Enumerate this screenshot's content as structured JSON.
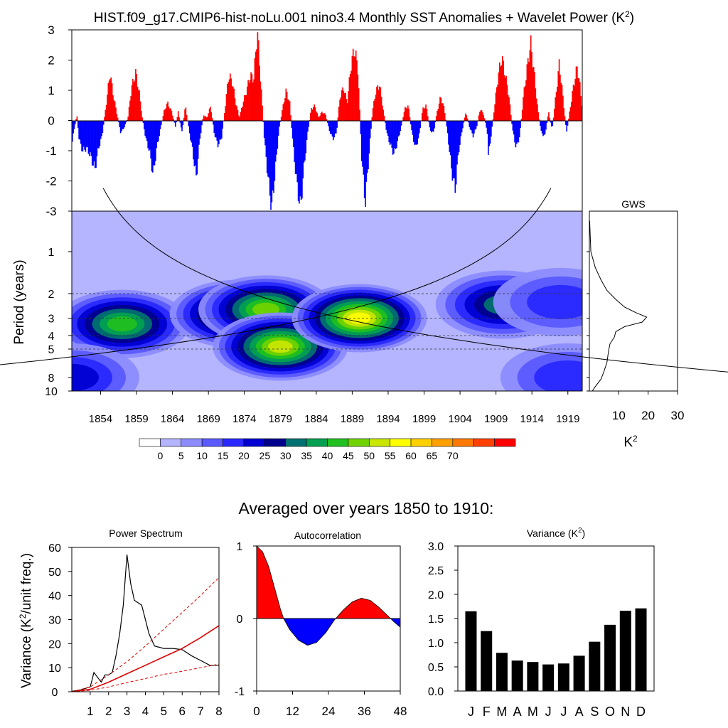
{
  "main_title": "HIST.f09_g17.CMIP6-hist-noLu.001 nino3.4 Monthly SST Anomalies + Wavelet Power (K",
  "main_title_sup": "2",
  "main_title_end": ")",
  "section_title": "Averaged over years 1850 to 1910:",
  "colors": {
    "positive": "#ff0000",
    "negative": "#0000ff",
    "wavelet_levels": [
      "#ffffff",
      "#b4b4ff",
      "#8c8cff",
      "#5a5aff",
      "#2828ff",
      "#0000d2",
      "#00008c",
      "#007070",
      "#00a050",
      "#20c020",
      "#70d200",
      "#c8e600",
      "#ffff00",
      "#ffd000",
      "#ffa000",
      "#ff7800",
      "#ff4000",
      "#ff0000"
    ]
  },
  "chart_data": [
    {
      "type": "bar",
      "name": "sst_anomalies",
      "ylim": [
        -3,
        3
      ],
      "yticks": [
        "3",
        "2",
        "1",
        "0",
        "-1",
        "-2",
        "-3"
      ],
      "x_range_years": [
        1850,
        1921
      ],
      "anomaly_points": [
        [
          1850.0,
          -0.8
        ],
        [
          1850.3,
          -0.3
        ],
        [
          1850.7,
          0.2
        ],
        [
          1851.0,
          -0.6
        ],
        [
          1851.5,
          -1.0
        ],
        [
          1852.0,
          -0.9
        ],
        [
          1852.5,
          -1.1
        ],
        [
          1853.2,
          -1.6
        ],
        [
          1853.7,
          -0.9
        ],
        [
          1854.2,
          -0.5
        ],
        [
          1854.8,
          0.6
        ],
        [
          1855.3,
          1.6
        ],
        [
          1855.8,
          0.8
        ],
        [
          1856.3,
          0.2
        ],
        [
          1856.8,
          -0.4
        ],
        [
          1857.3,
          -0.2
        ],
        [
          1857.8,
          0.1
        ],
        [
          1858.3,
          1.1
        ],
        [
          1858.9,
          1.6
        ],
        [
          1859.4,
          0.9
        ],
        [
          1859.8,
          0.1
        ],
        [
          1860.3,
          -0.6
        ],
        [
          1860.8,
          -1.0
        ],
        [
          1861.3,
          -1.8
        ],
        [
          1861.8,
          -0.9
        ],
        [
          1862.3,
          -0.3
        ],
        [
          1862.8,
          0.3
        ],
        [
          1863.3,
          0.6
        ],
        [
          1863.9,
          0.3
        ],
        [
          1864.4,
          -0.2
        ],
        [
          1864.8,
          0.3
        ],
        [
          1865.3,
          -0.4
        ],
        [
          1865.8,
          0.5
        ],
        [
          1866.3,
          -0.3
        ],
        [
          1866.8,
          -1.0
        ],
        [
          1867.3,
          -1.9
        ],
        [
          1867.8,
          -0.6
        ],
        [
          1868.3,
          0.2
        ],
        [
          1868.8,
          0.1
        ],
        [
          1869.3,
          0.5
        ],
        [
          1869.8,
          -0.4
        ],
        [
          1870.3,
          -0.8
        ],
        [
          1870.8,
          -0.6
        ],
        [
          1871.3,
          0.4
        ],
        [
          1871.8,
          1.5
        ],
        [
          1872.3,
          1.3
        ],
        [
          1872.8,
          0.6
        ],
        [
          1873.3,
          0.1
        ],
        [
          1873.8,
          0.6
        ],
        [
          1874.3,
          1.0
        ],
        [
          1874.8,
          1.5
        ],
        [
          1875.3,
          1.4
        ],
        [
          1875.8,
          3.0
        ],
        [
          1876.3,
          1.2
        ],
        [
          1876.8,
          -0.7
        ],
        [
          1877.3,
          -1.9
        ],
        [
          1877.8,
          -2.9
        ],
        [
          1878.3,
          -1.6
        ],
        [
          1878.8,
          -0.3
        ],
        [
          1879.3,
          0.4
        ],
        [
          1879.8,
          1.0
        ],
        [
          1880.3,
          0.6
        ],
        [
          1880.8,
          -0.9
        ],
        [
          1881.3,
          -2.1
        ],
        [
          1881.8,
          -2.9
        ],
        [
          1882.3,
          -1.5
        ],
        [
          1882.8,
          -0.4
        ],
        [
          1883.3,
          0.4
        ],
        [
          1883.8,
          0.5
        ],
        [
          1884.3,
          0.1
        ],
        [
          1884.8,
          0.3
        ],
        [
          1885.3,
          0.2
        ],
        [
          1885.8,
          -0.3
        ],
        [
          1886.3,
          -0.6
        ],
        [
          1886.8,
          -0.4
        ],
        [
          1887.3,
          0.8
        ],
        [
          1887.8,
          1.1
        ],
        [
          1888.3,
          0.6
        ],
        [
          1888.8,
          1.8
        ],
        [
          1889.3,
          2.4
        ],
        [
          1889.8,
          1.7
        ],
        [
          1890.3,
          -1.2
        ],
        [
          1890.8,
          -2.7
        ],
        [
          1891.3,
          -1.2
        ],
        [
          1891.8,
          0.3
        ],
        [
          1892.3,
          1.0
        ],
        [
          1892.8,
          1.2
        ],
        [
          1893.3,
          0.4
        ],
        [
          1893.8,
          -0.4
        ],
        [
          1894.3,
          -0.8
        ],
        [
          1894.8,
          -1.1
        ],
        [
          1895.3,
          -0.7
        ],
        [
          1895.8,
          -0.2
        ],
        [
          1896.3,
          0.4
        ],
        [
          1896.8,
          0.5
        ],
        [
          1897.3,
          -0.4
        ],
        [
          1897.8,
          -0.9
        ],
        [
          1898.3,
          -0.5
        ],
        [
          1898.8,
          0.4
        ],
        [
          1899.3,
          0.5
        ],
        [
          1899.8,
          -0.3
        ],
        [
          1900.3,
          -0.4
        ],
        [
          1900.8,
          0.3
        ],
        [
          1901.3,
          0.8
        ],
        [
          1901.8,
          0.4
        ],
        [
          1902.3,
          -0.5
        ],
        [
          1902.8,
          -1.6
        ],
        [
          1903.3,
          -2.3
        ],
        [
          1903.8,
          -1.0
        ],
        [
          1904.3,
          -0.3
        ],
        [
          1904.8,
          0.3
        ],
        [
          1905.3,
          -0.2
        ],
        [
          1905.8,
          -0.5
        ],
        [
          1906.3,
          -0.2
        ],
        [
          1906.8,
          0.4
        ],
        [
          1907.3,
          0.2
        ],
        [
          1907.8,
          -0.4
        ],
        [
          1907.9,
          -1.2
        ],
        [
          1908.3,
          -0.5
        ],
        [
          1908.8,
          0.5
        ],
        [
          1909.3,
          1.5
        ],
        [
          1909.8,
          2.1
        ],
        [
          1910.3,
          1.5
        ],
        [
          1910.8,
          0.8
        ],
        [
          1911.3,
          -0.3
        ],
        [
          1911.8,
          -0.9
        ],
        [
          1912.3,
          -0.5
        ],
        [
          1912.8,
          0.8
        ],
        [
          1913.3,
          1.7
        ],
        [
          1913.8,
          2.6
        ],
        [
          1914.3,
          1.6
        ],
        [
          1914.8,
          0.4
        ],
        [
          1915.3,
          -0.4
        ],
        [
          1915.8,
          -0.5
        ],
        [
          1916.3,
          0.3
        ],
        [
          1916.8,
          -0.3
        ],
        [
          1917.3,
          0.8
        ],
        [
          1917.8,
          1.9
        ],
        [
          1918.3,
          0.8
        ],
        [
          1918.8,
          -0.4
        ],
        [
          1919.3,
          0.4
        ],
        [
          1919.8,
          1.2
        ],
        [
          1920.3,
          1.8
        ],
        [
          1920.7,
          1.1
        ],
        [
          1921.0,
          0.4
        ]
      ]
    },
    {
      "type": "heatmap",
      "name": "wavelet_power",
      "ylabel": "Period (years)",
      "yticks": [
        "1",
        "2",
        "3",
        "4",
        "5",
        "8",
        "10"
      ],
      "xticks": [
        "1854",
        "1859",
        "1864",
        "1869",
        "1874",
        "1879",
        "1884",
        "1889",
        "1894",
        "1899",
        "1904",
        "1909",
        "1914",
        "1919"
      ],
      "colorbar_labels": [
        "0",
        "5",
        "10",
        "15",
        "20",
        "25",
        "30",
        "35",
        "40",
        "45",
        "50",
        "55",
        "60",
        "65",
        "70"
      ],
      "peaks": [
        {
          "year": 1857,
          "period": 3.3,
          "power": 40
        },
        {
          "year": 1873,
          "period": 2.8,
          "power": 48
        },
        {
          "year": 1877,
          "period": 2.6,
          "power": 45
        },
        {
          "year": 1879,
          "period": 4.8,
          "power": 52
        },
        {
          "year": 1890,
          "period": 3.0,
          "power": 55
        },
        {
          "year": 1910,
          "period": 2.4,
          "power": 30
        },
        {
          "year": 1918,
          "period": 2.3,
          "power": 18
        },
        {
          "year": 1850,
          "period": 8,
          "power": 20
        },
        {
          "year": 1919,
          "period": 8,
          "power": 18
        }
      ]
    },
    {
      "type": "line",
      "name": "gws",
      "title": "GWS",
      "xlabel": "K",
      "xlabel_sup": "2",
      "xticks": [
        "10",
        "20",
        "30"
      ],
      "xlim": [
        0,
        30
      ],
      "points": [
        [
          0.1,
          0.6
        ],
        [
          0.5,
          1.0
        ],
        [
          2,
          1.3
        ],
        [
          4,
          1.6
        ],
        [
          6,
          1.9
        ],
        [
          9,
          2.2
        ],
        [
          12,
          2.5
        ],
        [
          16,
          2.75
        ],
        [
          19.5,
          2.95
        ],
        [
          18,
          3.2
        ],
        [
          12,
          3.45
        ],
        [
          9,
          3.75
        ],
        [
          8.5,
          4.1
        ],
        [
          7,
          4.6
        ],
        [
          6.5,
          5.2
        ],
        [
          6,
          6.2
        ],
        [
          5,
          7.2
        ],
        [
          4,
          8.2
        ],
        [
          2,
          9.3
        ],
        [
          1,
          10.0
        ]
      ]
    },
    {
      "type": "line",
      "name": "power_spectrum",
      "title": "Power Spectrum",
      "ylabel": "Variance (K",
      "ylabel_sup": "2",
      "ylabel_end": "/unit freq.)",
      "xticks": [
        "1",
        "2",
        "3",
        "4",
        "5",
        "6",
        "7",
        "8"
      ],
      "yticks": [
        "60",
        "50",
        "40",
        "30",
        "20",
        "10",
        "0"
      ],
      "xlim": [
        0,
        8
      ],
      "ylim": [
        0,
        60
      ],
      "series": [
        {
          "values": [
            [
              0,
              0.2
            ],
            [
              0.5,
              0.8
            ],
            [
              1,
              2
            ],
            [
              1.2,
              8
            ],
            [
              1.4,
              6
            ],
            [
              1.6,
              4
            ],
            [
              1.8,
              7
            ],
            [
              2,
              7
            ],
            [
              2.2,
              8
            ],
            [
              2.4,
              15
            ],
            [
              2.6,
              24
            ],
            [
              2.8,
              36
            ],
            [
              3,
              57
            ],
            [
              3.2,
              45
            ],
            [
              3.4,
              38
            ],
            [
              3.8,
              36
            ],
            [
              4.2,
              24
            ],
            [
              4.5,
              19
            ],
            [
              5,
              18
            ],
            [
              5.5,
              18
            ],
            [
              6,
              17.5
            ],
            [
              6.5,
              15
            ],
            [
              7,
              13
            ],
            [
              7.5,
              11
            ],
            [
              8,
              11
            ]
          ]
        },
        {
          "values": [
            [
              0,
              0
            ],
            [
              1,
              1
            ],
            [
              2,
              4
            ],
            [
              3,
              7.5
            ],
            [
              4,
              11
            ],
            [
              5,
              14.5
            ],
            [
              6,
              18
            ],
            [
              7,
              22.5
            ],
            [
              8,
              27.5
            ]
          ]
        },
        {
          "values": [
            [
              0,
              0
            ],
            [
              1,
              2
            ],
            [
              2,
              7
            ],
            [
              3,
              12.5
            ],
            [
              4,
              19
            ],
            [
              5,
              26
            ],
            [
              6,
              33
            ],
            [
              7,
              40
            ],
            [
              8,
              47.5
            ]
          ]
        },
        {
          "values": [
            [
              0,
              0
            ],
            [
              1,
              0.6
            ],
            [
              2,
              2
            ],
            [
              3,
              3.8
            ],
            [
              4,
              5.5
            ],
            [
              5,
              7.2
            ],
            [
              6,
              8.5
            ],
            [
              7,
              10
            ],
            [
              8,
              11.5
            ]
          ]
        }
      ]
    },
    {
      "type": "area",
      "name": "autocorrelation",
      "title": "Autocorrelation",
      "xticks": [
        "0",
        "12",
        "24",
        "36",
        "48"
      ],
      "yticks": [
        "1",
        "0",
        "-1"
      ],
      "xlim": [
        0,
        48
      ],
      "ylim": [
        -1,
        1
      ],
      "values": [
        [
          0,
          1
        ],
        [
          2,
          0.92
        ],
        [
          4,
          0.72
        ],
        [
          6,
          0.42
        ],
        [
          8,
          0.12
        ],
        [
          9,
          0
        ],
        [
          11,
          -0.15
        ],
        [
          14,
          -0.3
        ],
        [
          17,
          -0.37
        ],
        [
          20,
          -0.33
        ],
        [
          23,
          -0.2
        ],
        [
          26,
          -0.02
        ],
        [
          29,
          0.12
        ],
        [
          32,
          0.23
        ],
        [
          35,
          0.28
        ],
        [
          38,
          0.25
        ],
        [
          41,
          0.15
        ],
        [
          44,
          0.03
        ],
        [
          46,
          -0.05
        ],
        [
          48,
          -0.12
        ]
      ]
    },
    {
      "type": "bar",
      "name": "variance",
      "title": "Variance (K",
      "title_sup": "2",
      "title_end": ")",
      "categories": [
        "J",
        "F",
        "M",
        "A",
        "M",
        "J",
        "J",
        "A",
        "S",
        "O",
        "N",
        "D"
      ],
      "values": [
        1.65,
        1.24,
        0.79,
        0.63,
        0.6,
        0.55,
        0.57,
        0.73,
        1.02,
        1.37,
        1.66,
        1.71
      ],
      "yticks": [
        "3.0",
        "2.5",
        "2.0",
        "1.5",
        "1.0",
        "0.5",
        "0.0"
      ],
      "ylim": [
        0,
        3
      ]
    }
  ]
}
